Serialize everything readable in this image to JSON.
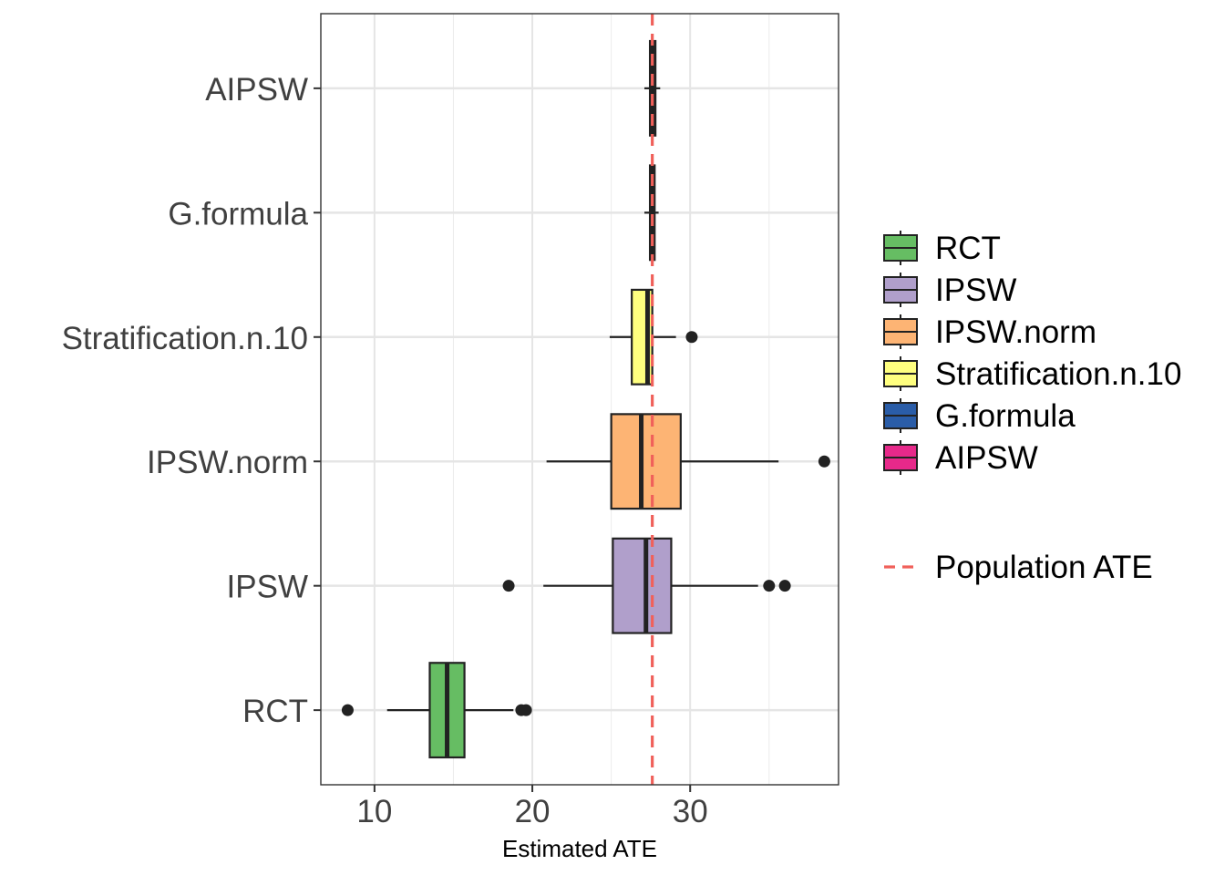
{
  "chart_data": {
    "type": "boxplot",
    "orientation": "horizontal",
    "xlabel": "Estimated ATE",
    "ylabel": "",
    "xlim": [
      6.6,
      39.4
    ],
    "x_ticks": [
      10,
      20,
      30
    ],
    "grid": true,
    "categories": [
      "RCT",
      "IPSW",
      "IPSW.norm",
      "Stratification.n.10",
      "G.formula",
      "AIPSW"
    ],
    "series": [
      {
        "name": "RCT",
        "color": "#66BD63",
        "min": 10.8,
        "q1": 13.5,
        "median": 14.6,
        "q3": 15.7,
        "max": 18.8,
        "outliers": [
          8.3,
          19.3,
          19.6
        ]
      },
      {
        "name": "IPSW",
        "color": "#B09FCB",
        "min": 20.7,
        "q1": 25.1,
        "median": 27.2,
        "q3": 28.8,
        "max": 34.3,
        "outliers": [
          18.5,
          35.0,
          36.0
        ]
      },
      {
        "name": "IPSW.norm",
        "color": "#FDB474",
        "min": 20.9,
        "q1": 25.0,
        "median": 26.9,
        "q3": 29.4,
        "max": 35.6,
        "outliers": [
          38.5
        ]
      },
      {
        "name": "Stratification.n.10",
        "color": "#FFFF7F",
        "min": 24.9,
        "q1": 26.3,
        "median": 27.3,
        "q3": 27.6,
        "max": 29.1,
        "outliers": [
          30.1
        ]
      },
      {
        "name": "G.formula",
        "color": "#2A5DA8",
        "min": 27.1,
        "q1": 27.45,
        "median": 27.6,
        "q3": 27.75,
        "max": 28.0,
        "outliers": []
      },
      {
        "name": "AIPSW",
        "color": "#E7298A",
        "min": 27.1,
        "q1": 27.45,
        "median": 27.65,
        "q3": 27.8,
        "max": 28.1,
        "outliers": []
      }
    ],
    "reference_line": {
      "name": "Population ATE",
      "value": 27.6,
      "color": "#F0605A",
      "style": "dashed"
    },
    "legend": {
      "placement": "right",
      "items": [
        "RCT",
        "IPSW",
        "IPSW.norm",
        "Stratification.n.10",
        "G.formula",
        "AIPSW"
      ],
      "line_item": "Population ATE"
    }
  }
}
